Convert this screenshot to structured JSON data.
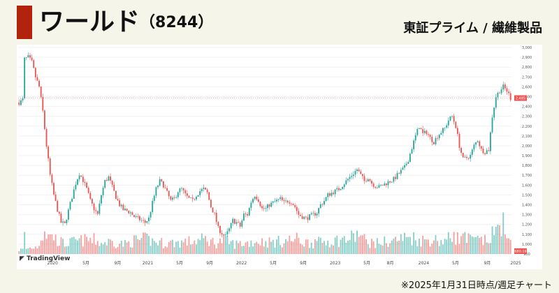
{
  "header": {
    "company": "ワールド",
    "code": "（8244）",
    "market": "東証プライム / 繊維製品"
  },
  "footer": {
    "note": "※2025年1月31日時点/週足チャート"
  },
  "branding": {
    "logo_text": "TradingView"
  },
  "colors": {
    "up": "#26a69a",
    "down": "#ef5350",
    "accent": "#b2230d",
    "current": "#ef5350"
  },
  "chart_data": {
    "type": "candlestick",
    "y_ticks": [
      "900",
      "1,000",
      "1,100",
      "1,200",
      "1,300",
      "1,400",
      "1,500",
      "1,600",
      "1,700",
      "1,800",
      "1,900",
      "2,000",
      "2,100",
      "2,200",
      "2,300",
      "2,400",
      "2,500",
      "2,600",
      "2,700",
      "2,800",
      "2,900",
      "3,000"
    ],
    "x_ticks": [
      "2020",
      "5月",
      "9月",
      "2021",
      "5月",
      "9月",
      "2022",
      "5月",
      "9月",
      "2023",
      "5月",
      "8月",
      "2024",
      "5月",
      "9月",
      "2025"
    ],
    "current_price": 2485,
    "current_price_label": "2,485",
    "volume_label": "680.1K",
    "price_keyframes": [
      [
        0,
        2440
      ],
      [
        1,
        2450
      ],
      [
        2,
        2470
      ],
      [
        3,
        2880
      ],
      [
        5,
        2900
      ],
      [
        7,
        2850
      ],
      [
        9,
        2700
      ],
      [
        11,
        2600
      ],
      [
        13,
        2350
      ],
      [
        15,
        2000
      ],
      [
        17,
        1700
      ],
      [
        19,
        1500
      ],
      [
        21,
        1350
      ],
      [
        23,
        1220
      ],
      [
        25,
        1200
      ],
      [
        27,
        1340
      ],
      [
        29,
        1480
      ],
      [
        31,
        1620
      ],
      [
        33,
        1720
      ],
      [
        35,
        1650
      ],
      [
        37,
        1560
      ],
      [
        39,
        1440
      ],
      [
        41,
        1360
      ],
      [
        43,
        1300
      ],
      [
        45,
        1500
      ],
      [
        47,
        1640
      ],
      [
        49,
        1680
      ],
      [
        51,
        1580
      ],
      [
        53,
        1480
      ],
      [
        55,
        1400
      ],
      [
        57,
        1350
      ],
      [
        59,
        1340
      ],
      [
        61,
        1320
      ],
      [
        63,
        1280
      ],
      [
        65,
        1260
      ],
      [
        67,
        1240
      ],
      [
        69,
        1220
      ],
      [
        71,
        1260
      ],
      [
        73,
        1420
      ],
      [
        75,
        1560
      ],
      [
        77,
        1640
      ],
      [
        79,
        1600
      ],
      [
        81,
        1520
      ],
      [
        83,
        1440
      ],
      [
        85,
        1460
      ],
      [
        87,
        1540
      ],
      [
        89,
        1560
      ],
      [
        91,
        1500
      ],
      [
        93,
        1460
      ],
      [
        95,
        1440
      ],
      [
        97,
        1500
      ],
      [
        99,
        1540
      ],
      [
        101,
        1560
      ],
      [
        103,
        1520
      ],
      [
        105,
        1380
      ],
      [
        107,
        1300
      ],
      [
        109,
        1160
      ],
      [
        111,
        1110
      ],
      [
        113,
        1080
      ],
      [
        115,
        1150
      ],
      [
        117,
        1240
      ],
      [
        119,
        1220
      ],
      [
        121,
        1180
      ],
      [
        123,
        1300
      ],
      [
        125,
        1300
      ],
      [
        127,
        1430
      ],
      [
        129,
        1500
      ],
      [
        131,
        1450
      ],
      [
        133,
        1360
      ],
      [
        135,
        1360
      ],
      [
        137,
        1400
      ],
      [
        139,
        1420
      ],
      [
        141,
        1440
      ],
      [
        143,
        1460
      ],
      [
        145,
        1420
      ],
      [
        147,
        1440
      ],
      [
        149,
        1430
      ],
      [
        151,
        1380
      ],
      [
        153,
        1300
      ],
      [
        155,
        1280
      ],
      [
        157,
        1260
      ],
      [
        159,
        1280
      ],
      [
        161,
        1300
      ],
      [
        163,
        1320
      ],
      [
        165,
        1400
      ],
      [
        167,
        1440
      ],
      [
        169,
        1500
      ],
      [
        171,
        1520
      ],
      [
        173,
        1540
      ],
      [
        175,
        1560
      ],
      [
        177,
        1600
      ],
      [
        179,
        1640
      ],
      [
        181,
        1680
      ],
      [
        183,
        1720
      ],
      [
        185,
        1760
      ],
      [
        187,
        1700
      ],
      [
        189,
        1640
      ],
      [
        191,
        1680
      ],
      [
        193,
        1620
      ],
      [
        195,
        1590
      ],
      [
        197,
        1580
      ],
      [
        199,
        1600
      ],
      [
        201,
        1620
      ],
      [
        203,
        1640
      ],
      [
        205,
        1660
      ],
      [
        207,
        1700
      ],
      [
        209,
        1740
      ],
      [
        211,
        1780
      ],
      [
        213,
        1860
      ],
      [
        215,
        1980
      ],
      [
        217,
        2100
      ],
      [
        219,
        2200
      ],
      [
        221,
        2120
      ],
      [
        223,
        2140
      ],
      [
        225,
        2080
      ],
      [
        227,
        2040
      ],
      [
        229,
        2100
      ],
      [
        231,
        2140
      ],
      [
        233,
        2180
      ],
      [
        235,
        2260
      ],
      [
        237,
        2300
      ],
      [
        239,
        2200
      ],
      [
        241,
        2000
      ],
      [
        243,
        1860
      ],
      [
        245,
        1880
      ],
      [
        247,
        1900
      ],
      [
        249,
        2000
      ],
      [
        251,
        2060
      ],
      [
        253,
        1960
      ],
      [
        255,
        1940
      ],
      [
        257,
        1960
      ],
      [
        259,
        2300
      ],
      [
        261,
        2500
      ],
      [
        263,
        2560
      ],
      [
        265,
        2600
      ],
      [
        267,
        2560
      ],
      [
        269,
        2485
      ]
    ],
    "volume_keyframes": [
      [
        0,
        0.08
      ],
      [
        10,
        0.15
      ],
      [
        14,
        0.5
      ],
      [
        16,
        0.35
      ],
      [
        20,
        0.3
      ],
      [
        25,
        0.2
      ],
      [
        30,
        0.25
      ],
      [
        40,
        0.3
      ],
      [
        45,
        0.22
      ],
      [
        50,
        0.25
      ],
      [
        58,
        0.2
      ],
      [
        64,
        0.28
      ],
      [
        70,
        0.3
      ],
      [
        74,
        0.25
      ],
      [
        80,
        0.22
      ],
      [
        90,
        0.24
      ],
      [
        96,
        0.26
      ],
      [
        102,
        0.3
      ],
      [
        108,
        0.22
      ],
      [
        112,
        0.28
      ],
      [
        118,
        0.2
      ],
      [
        124,
        0.22
      ],
      [
        130,
        0.26
      ],
      [
        136,
        0.24
      ],
      [
        142,
        0.25
      ],
      [
        148,
        0.28
      ],
      [
        152,
        0.3
      ],
      [
        156,
        0.24
      ],
      [
        162,
        0.22
      ],
      [
        168,
        0.26
      ],
      [
        174,
        0.28
      ],
      [
        180,
        0.3
      ],
      [
        186,
        0.4
      ],
      [
        190,
        0.25
      ],
      [
        196,
        0.22
      ],
      [
        202,
        0.26
      ],
      [
        208,
        0.3
      ],
      [
        214,
        0.35
      ],
      [
        220,
        0.28
      ],
      [
        226,
        0.3
      ],
      [
        232,
        0.26
      ],
      [
        238,
        0.35
      ],
      [
        244,
        0.3
      ],
      [
        250,
        0.28
      ],
      [
        256,
        0.26
      ],
      [
        262,
        0.5
      ],
      [
        264,
        0.7
      ],
      [
        266,
        0.3
      ],
      [
        269,
        0.2
      ]
    ],
    "volume_spikes": [
      [
        3,
        0.45
      ],
      [
        18,
        0.4
      ],
      [
        40,
        0.22
      ],
      [
        120,
        0.22
      ],
      [
        162,
        0.3
      ],
      [
        186,
        0.35
      ],
      [
        201,
        0.22
      ],
      [
        222,
        0.3
      ],
      [
        238,
        0.45
      ],
      [
        244,
        0.45
      ],
      [
        262,
        0.6
      ],
      [
        265,
        0.85
      ]
    ]
  }
}
